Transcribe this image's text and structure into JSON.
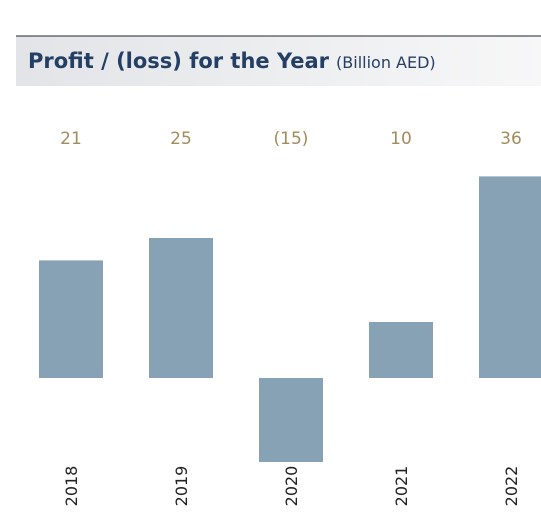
{
  "chart_data": {
    "type": "bar",
    "title": "Profit / (loss) for the Year",
    "subtitle": "(Billion AED)",
    "categories": [
      "2018",
      "2019",
      "2020",
      "2021",
      "2022"
    ],
    "values": [
      21,
      25,
      -15,
      10,
      36
    ],
    "value_labels": [
      "21",
      "25",
      "(15)",
      "10",
      "36"
    ],
    "color": "#86a2b4"
  }
}
